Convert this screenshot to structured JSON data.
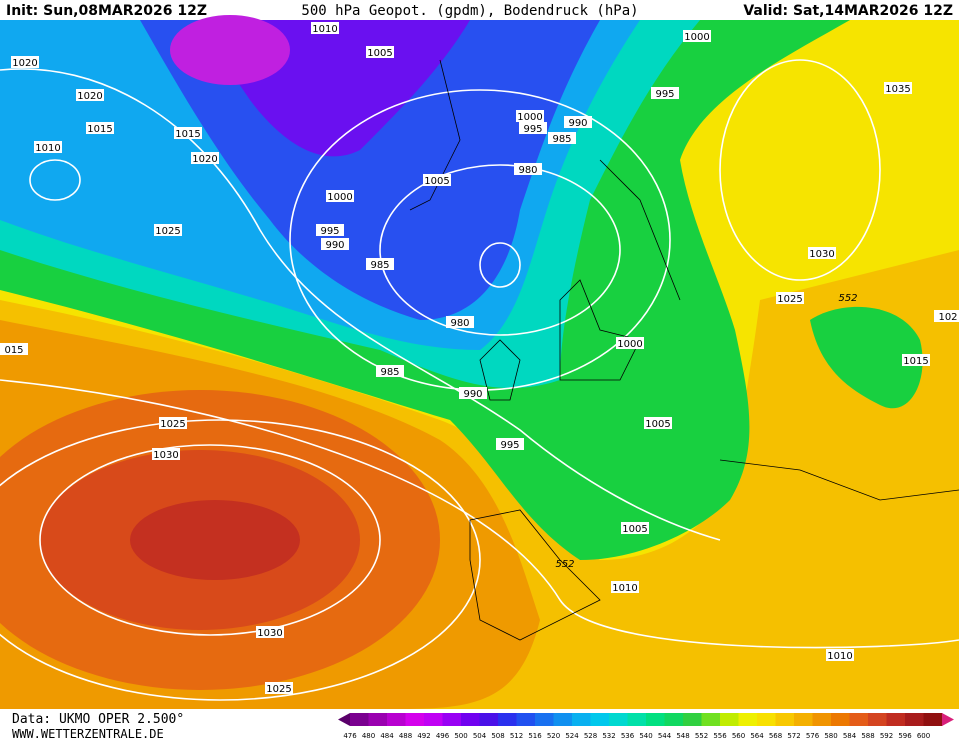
{
  "header": {
    "init": "Init: Sun,08MAR2026 12Z",
    "title": "500 hPa Geopot. (gpdm), Bodendruck (hPa)",
    "valid": "Valid: Sat,14MAR2026 12Z"
  },
  "footer": {
    "data": "Data: UKMO OPER 2.500°",
    "site": "WWW.WETTERZENTRALE.DE"
  },
  "isobar_labels": [
    "1010",
    "1005",
    "1000",
    "1020",
    "1020",
    "995",
    "1035",
    "1015",
    "1015",
    "1000",
    "995",
    "990",
    "985",
    "1010",
    "1020",
    "1005",
    "980",
    "1000",
    "1025",
    "995",
    "990",
    "985",
    "1030",
    "1025",
    "552",
    "980",
    "1000",
    "015",
    "1015",
    "985",
    "990",
    "995",
    "1005",
    "1025",
    "1030",
    "1005",
    "552",
    "1010",
    "1030",
    "1010",
    "1025",
    "102"
  ],
  "colorbar": {
    "labels": [
      476,
      480,
      484,
      488,
      492,
      496,
      500,
      504,
      508,
      512,
      516,
      520,
      524,
      528,
      532,
      536,
      540,
      544,
      548,
      552,
      556,
      560,
      564,
      568,
      572,
      576,
      580,
      584,
      588,
      592,
      596,
      600
    ]
  }
}
